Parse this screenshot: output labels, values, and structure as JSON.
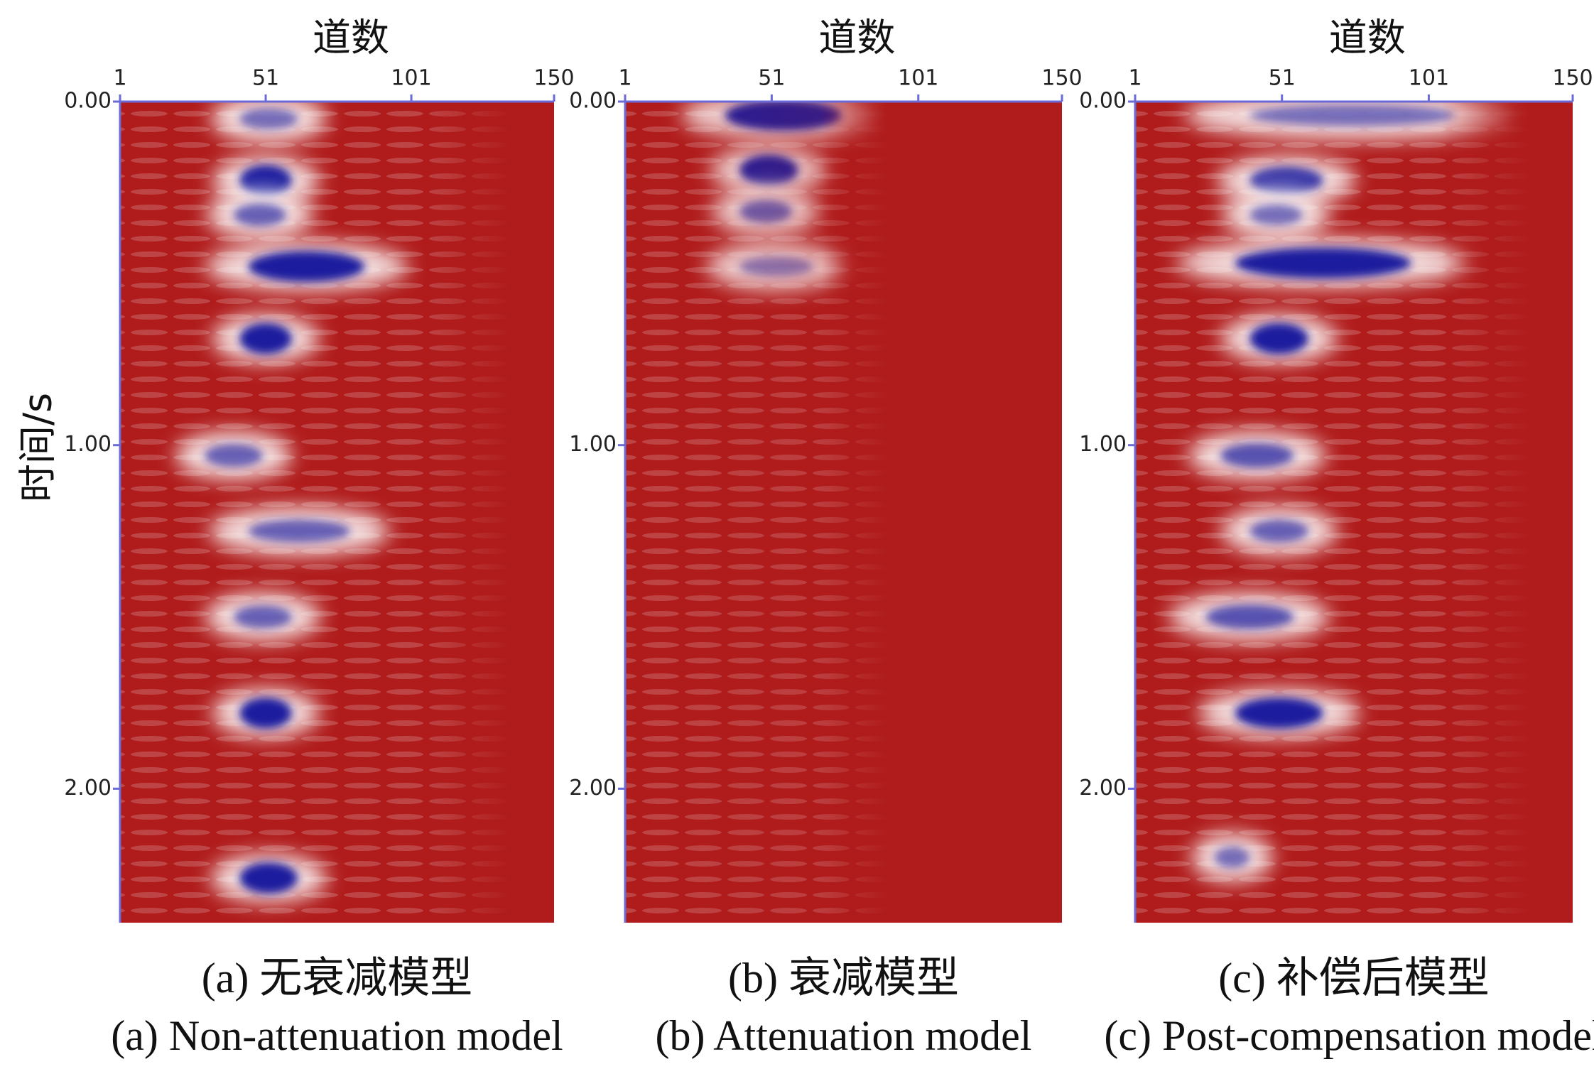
{
  "chart_data": [
    {
      "type": "heatmap",
      "x_label": "道数",
      "y_label": "时间/s",
      "caption_zh": "(a) 无衰减模型",
      "caption_en": "(a) Non-attenuation model",
      "xlim": [
        1,
        150
      ],
      "ylim": [
        0,
        2.39
      ],
      "y_inverted": true,
      "xticks": [
        1,
        51,
        101,
        150
      ],
      "yticks": [
        {
          "value": 0,
          "label": "0.00"
        },
        {
          "value": 1,
          "label": "1.00"
        },
        {
          "value": 2,
          "label": "2.00"
        }
      ],
      "background_color": "#b01c1c",
      "event_color": "#1a1a9e",
      "fade_right": false,
      "events": [
        {
          "time": 0.05,
          "traces": [
            42,
            62
          ],
          "amplitude": 0.4
        },
        {
          "time": 0.23,
          "traces": [
            42,
            60
          ],
          "amplitude": 1
        },
        {
          "time": 0.33,
          "traces": [
            40,
            58
          ],
          "amplitude": 0.5
        },
        {
          "time": 0.48,
          "traces": [
            45,
            85
          ],
          "amplitude": 1
        },
        {
          "time": 0.69,
          "traces": [
            42,
            60
          ],
          "amplitude": 1
        },
        {
          "time": 1.03,
          "traces": [
            30,
            50
          ],
          "amplitude": 0.5
        },
        {
          "time": 1.25,
          "traces": [
            45,
            80
          ],
          "amplitude": 0.5
        },
        {
          "time": 1.5,
          "traces": [
            40,
            60
          ],
          "amplitude": 0.5
        },
        {
          "time": 1.78,
          "traces": [
            42,
            60
          ],
          "amplitude": 1
        },
        {
          "time": 2.26,
          "traces": [
            42,
            62
          ],
          "amplitude": 1
        }
      ]
    },
    {
      "type": "heatmap",
      "x_label": "道数",
      "caption_zh": "(b) 衰减模型",
      "caption_en": "(b) Attenuation model",
      "xlim": [
        1,
        150
      ],
      "ylim": [
        0,
        2.39
      ],
      "y_inverted": true,
      "xticks": [
        1,
        51,
        101,
        150
      ],
      "yticks": [
        {
          "value": 0,
          "label": "0.00"
        },
        {
          "value": 1,
          "label": "1.00"
        },
        {
          "value": 2,
          "label": "2.00"
        }
      ],
      "background_color": "#b01c1c",
      "event_color": "#1a1a9e",
      "fade_right": true,
      "events": [
        {
          "time": 0.04,
          "traces": [
            35,
            75
          ],
          "amplitude": 1
        },
        {
          "time": 0.2,
          "traces": [
            40,
            60
          ],
          "amplitude": 1
        },
        {
          "time": 0.32,
          "traces": [
            40,
            58
          ],
          "amplitude": 0.5
        },
        {
          "time": 0.48,
          "traces": [
            40,
            65
          ],
          "amplitude": 0.3
        }
      ]
    },
    {
      "type": "heatmap",
      "x_label": "道数",
      "caption_zh": "(c) 补偿后模型",
      "caption_en": "(c) Post-compensation model",
      "xlim": [
        1,
        150
      ],
      "ylim": [
        0,
        2.39
      ],
      "y_inverted": true,
      "xticks": [
        1,
        51,
        101,
        150
      ],
      "yticks": [
        {
          "value": 0,
          "label": "0.00"
        },
        {
          "value": 1,
          "label": "1.00"
        },
        {
          "value": 2,
          "label": "2.00"
        }
      ],
      "background_color": "#b01c1c",
      "event_color": "#1a1a9e",
      "fade_right": false,
      "events": [
        {
          "time": 0.04,
          "traces": [
            40,
            110
          ],
          "amplitude": 0.4
        },
        {
          "time": 0.23,
          "traces": [
            40,
            65
          ],
          "amplitude": 0.8
        },
        {
          "time": 0.33,
          "traces": [
            40,
            58
          ],
          "amplitude": 0.4
        },
        {
          "time": 0.47,
          "traces": [
            35,
            95
          ],
          "amplitude": 1
        },
        {
          "time": 0.69,
          "traces": [
            40,
            60
          ],
          "amplitude": 1
        },
        {
          "time": 1.03,
          "traces": [
            30,
            55
          ],
          "amplitude": 0.6
        },
        {
          "time": 1.25,
          "traces": [
            40,
            60
          ],
          "amplitude": 0.5
        },
        {
          "time": 1.5,
          "traces": [
            25,
            55
          ],
          "amplitude": 0.6
        },
        {
          "time": 1.78,
          "traces": [
            35,
            65
          ],
          "amplitude": 1
        },
        {
          "time": 2.2,
          "traces": [
            28,
            40
          ],
          "amplitude": 0.4
        }
      ]
    }
  ]
}
